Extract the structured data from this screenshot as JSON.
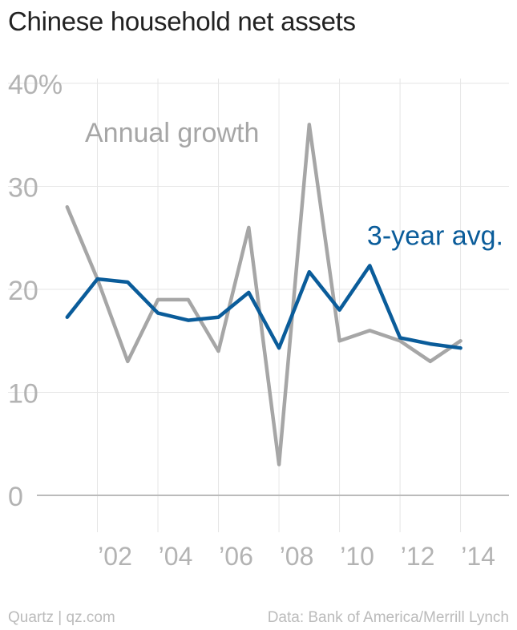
{
  "header": {
    "title": "Chinese household net assets"
  },
  "footer": {
    "source_left": "Quartz | qz.com",
    "source_right": "Data: Bank of America/Merrill Lynch"
  },
  "colors": {
    "annual": "#a6a6a6",
    "avg": "#0a5c9a",
    "grid": "#e6e6e6",
    "axis": "#bbbbbb",
    "tick_text": "#b3b3b3"
  },
  "chart_data": {
    "type": "line",
    "title": "Chinese household net assets",
    "ylim": [
      0,
      40
    ],
    "xlim": [
      2000.0,
      2015.6
    ],
    "y_ticks": [
      0,
      10,
      20,
      30,
      40
    ],
    "y_tick_labels": [
      "0",
      "10",
      "20",
      "30",
      "40%"
    ],
    "x_ticks": [
      2002,
      2004,
      2006,
      2008,
      2010,
      2012,
      2014
    ],
    "x_tick_labels": [
      "’02",
      "’04",
      "’06",
      "’08",
      "’10",
      "’12",
      "’14"
    ],
    "grid": true,
    "x": [
      2001,
      2002,
      2003,
      2004,
      2005,
      2006,
      2007,
      2008,
      2009,
      2010,
      2011,
      2012,
      2013,
      2014
    ],
    "series": [
      {
        "name": "Annual growth",
        "values": [
          28,
          21,
          13,
          19,
          19,
          14,
          26,
          3,
          36,
          15,
          16,
          15,
          13,
          15
        ]
      },
      {
        "name": "3-year avg.",
        "values": [
          17.3,
          21.0,
          20.7,
          17.7,
          17.0,
          17.3,
          19.7,
          14.3,
          21.7,
          18.0,
          22.3,
          15.3,
          14.7,
          14.3
        ]
      }
    ]
  }
}
